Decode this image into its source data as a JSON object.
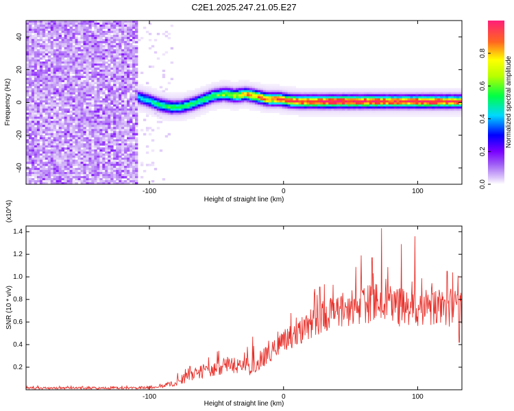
{
  "title": "C2E1.2025.247.21.05.E27",
  "chart_data": [
    {
      "type": "heatmap",
      "xlabel": "Height of straight line (km)",
      "ylabel": "Frequency (Hz)",
      "xlim": [
        -192,
        133
      ],
      "ylim": [
        -50,
        50
      ],
      "xticks": [
        -100,
        0,
        100
      ],
      "yticks": [
        -40,
        -20,
        0,
        20,
        40
      ],
      "colorbar": {
        "label": "Normalized spectral amplitude",
        "range": [
          0.0,
          1.0
        ],
        "ticks": [
          0.0,
          0.2,
          0.4,
          0.6,
          0.8
        ],
        "tick_labels": [
          "0.0",
          "0.2",
          "0.4",
          "0.6",
          "0.8"
        ],
        "colormap": [
          "#ffffff",
          "#c49df5",
          "#7b00ff",
          "#0000ff",
          "#00e5ff",
          "#00ff44",
          "#ffff00",
          "#ff4422",
          "#ff1e78"
        ]
      },
      "noise_region_x": [
        -192,
        -108
      ],
      "noise_level": 0.35,
      "signal_onset_x": -108,
      "ridge": {
        "x": [
          -108,
          -100,
          -92,
          -84,
          -76,
          -68,
          -60,
          -52,
          -44,
          -36,
          -28,
          -20,
          -12,
          -4,
          4,
          12,
          20,
          30,
          40,
          50,
          60,
          70,
          80,
          90,
          100,
          110,
          120,
          133
        ],
        "frequency": [
          3.0,
          1.0,
          -1.5,
          -3.0,
          -2.8,
          -1.0,
          1.5,
          4.0,
          5.0,
          4.0,
          5.0,
          3.5,
          2.0,
          2.0,
          1.0,
          0.5,
          0.5,
          0.5,
          0.5,
          0.5,
          0.5,
          0.5,
          0.5,
          0.5,
          0.5,
          0.5,
          0.5,
          0.5
        ],
        "amplitude": [
          0.5,
          0.55,
          0.6,
          0.62,
          0.6,
          0.62,
          0.63,
          0.65,
          0.7,
          0.75,
          0.8,
          0.85,
          0.85,
          0.88,
          0.9,
          0.92,
          0.92,
          0.95,
          0.97,
          0.97,
          0.95,
          0.95,
          0.92,
          0.92,
          0.95,
          0.95,
          0.92,
          0.9
        ]
      }
    },
    {
      "type": "line",
      "xlabel": "Height of straight line (km)",
      "ylabel": "SNR (10 * v/v)",
      "y_multiplier": "(x10^4)",
      "xlim": [
        -192,
        133
      ],
      "ylim": [
        0,
        14500
      ],
      "xticks": [
        -100,
        0,
        100
      ],
      "yticks": [
        2000,
        4000,
        6000,
        8000,
        10000,
        12000,
        14000
      ],
      "ytick_labels": [
        "0.2",
        "0.4",
        "0.6",
        "0.8",
        "1.0",
        "1.2",
        "1.4"
      ],
      "color": "#e8302a",
      "series": [
        {
          "name": "SNR",
          "x": [
            -192,
            -160,
            -130,
            -100,
            -90,
            -80,
            -70,
            -60,
            -50,
            -40,
            -30,
            -25,
            -20,
            -10,
            0,
            10,
            20,
            30,
            40,
            50,
            60,
            70,
            80,
            90,
            100,
            110,
            120,
            133
          ],
          "trend": [
            150,
            150,
            150,
            200,
            350,
            700,
            1200,
            1600,
            2000,
            2200,
            2300,
            1700,
            2500,
            3400,
            4300,
            5000,
            5800,
            6500,
            7000,
            7200,
            7500,
            7700,
            7400,
            7300,
            7300,
            7400,
            7300,
            7200
          ],
          "spread": [
            100,
            100,
            100,
            120,
            200,
            350,
            500,
            700,
            800,
            800,
            900,
            800,
            900,
            1000,
            1100,
            1200,
            1300,
            1500,
            1500,
            1600,
            1700,
            1700,
            1800,
            1800,
            1700,
            1700,
            1700,
            1700
          ],
          "peaks": [
            {
              "x": -27,
              "y": 3800
            },
            {
              "x": -23,
              "y": 4700
            },
            {
              "x": 3,
              "y": 5400
            },
            {
              "x": 25,
              "y": 8400
            },
            {
              "x": 27,
              "y": 9100
            },
            {
              "x": 37,
              "y": 9300
            },
            {
              "x": 58,
              "y": 11900
            },
            {
              "x": 66,
              "y": 11700
            },
            {
              "x": 73,
              "y": 14300
            },
            {
              "x": 88,
              "y": 12900
            },
            {
              "x": 98,
              "y": 13600
            },
            {
              "x": 122,
              "y": 10500
            },
            {
              "x": 126,
              "y": 10400
            },
            {
              "x": 130,
              "y": 10100
            },
            {
              "x": 131,
              "y": 4200
            }
          ]
        }
      ]
    }
  ]
}
